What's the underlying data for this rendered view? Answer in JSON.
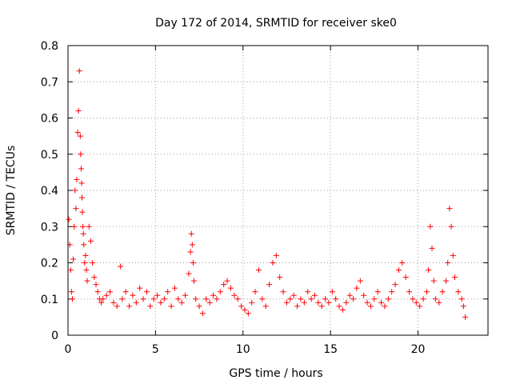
{
  "chart_data": {
    "type": "scatter",
    "title": "Day 172 of 2014, SRMTID for receiver ske0",
    "xlabel": "GPS time / hours",
    "ylabel": "SRMTID / TECUs",
    "xlim": [
      0,
      24
    ],
    "ylim": [
      0,
      0.8
    ],
    "xticks": [
      0,
      5,
      10,
      15,
      20
    ],
    "yticks": [
      0,
      0.1,
      0.2,
      0.3,
      0.4,
      0.5,
      0.6,
      0.7,
      0.8
    ],
    "xtick_labels": [
      "0",
      "5",
      "10",
      "15",
      "20"
    ],
    "ytick_labels": [
      "0",
      "0.1",
      "0.2",
      "0.3",
      "0.4",
      "0.5",
      "0.6",
      "0.7",
      "0.8"
    ],
    "grid": true,
    "marker": "+",
    "marker_color": "#ff0000",
    "series": [
      {
        "name": "SRMTID",
        "x": [
          0.05,
          0.1,
          0.15,
          0.2,
          0.25,
          0.3,
          0.35,
          0.4,
          0.45,
          0.5,
          0.55,
          0.6,
          0.65,
          0.7,
          0.72,
          0.75,
          0.78,
          0.8,
          0.82,
          0.85,
          0.88,
          0.9,
          0.95,
          1.0,
          1.05,
          1.1,
          1.2,
          1.3,
          1.4,
          1.5,
          1.6,
          1.7,
          1.8,
          1.9,
          2.0,
          2.2,
          2.4,
          2.6,
          2.8,
          3.0,
          3.1,
          3.3,
          3.5,
          3.7,
          3.9,
          4.1,
          4.3,
          4.5,
          4.7,
          4.9,
          5.1,
          5.3,
          5.5,
          5.7,
          5.9,
          6.1,
          6.3,
          6.5,
          6.7,
          6.9,
          7.0,
          7.05,
          7.1,
          7.15,
          7.2,
          7.3,
          7.5,
          7.7,
          7.9,
          8.1,
          8.3,
          8.5,
          8.7,
          8.9,
          9.1,
          9.3,
          9.5,
          9.7,
          9.9,
          10.1,
          10.3,
          10.5,
          10.7,
          10.9,
          11.1,
          11.3,
          11.5,
          11.7,
          11.9,
          12.1,
          12.3,
          12.5,
          12.7,
          12.9,
          13.1,
          13.3,
          13.5,
          13.7,
          13.9,
          14.1,
          14.3,
          14.5,
          14.7,
          14.9,
          15.1,
          15.3,
          15.5,
          15.7,
          15.9,
          16.1,
          16.3,
          16.5,
          16.7,
          16.9,
          17.1,
          17.3,
          17.5,
          17.7,
          17.9,
          18.1,
          18.3,
          18.5,
          18.7,
          18.9,
          19.1,
          19.3,
          19.5,
          19.7,
          19.9,
          20.1,
          20.3,
          20.5,
          20.6,
          20.7,
          20.8,
          20.9,
          21.0,
          21.2,
          21.4,
          21.6,
          21.7,
          21.8,
          21.9,
          22.0,
          22.1,
          22.3,
          22.5,
          22.6,
          22.7
        ],
        "y": [
          0.32,
          0.25,
          0.18,
          0.12,
          0.1,
          0.21,
          0.3,
          0.4,
          0.35,
          0.43,
          0.56,
          0.62,
          0.73,
          0.55,
          0.5,
          0.46,
          0.42,
          0.38,
          0.34,
          0.3,
          0.28,
          0.25,
          0.2,
          0.22,
          0.18,
          0.15,
          0.3,
          0.26,
          0.2,
          0.16,
          0.14,
          0.12,
          0.1,
          0.09,
          0.1,
          0.11,
          0.12,
          0.09,
          0.08,
          0.19,
          0.1,
          0.12,
          0.08,
          0.11,
          0.09,
          0.13,
          0.1,
          0.12,
          0.08,
          0.1,
          0.11,
          0.09,
          0.1,
          0.12,
          0.08,
          0.13,
          0.1,
          0.09,
          0.11,
          0.17,
          0.23,
          0.28,
          0.25,
          0.2,
          0.15,
          0.1,
          0.08,
          0.06,
          0.1,
          0.09,
          0.11,
          0.1,
          0.12,
          0.14,
          0.15,
          0.13,
          0.11,
          0.1,
          0.08,
          0.07,
          0.06,
          0.09,
          0.12,
          0.18,
          0.1,
          0.08,
          0.14,
          0.2,
          0.22,
          0.16,
          0.12,
          0.09,
          0.1,
          0.11,
          0.08,
          0.1,
          0.09,
          0.12,
          0.1,
          0.11,
          0.09,
          0.08,
          0.1,
          0.09,
          0.12,
          0.1,
          0.08,
          0.07,
          0.09,
          0.11,
          0.1,
          0.13,
          0.15,
          0.11,
          0.09,
          0.08,
          0.1,
          0.12,
          0.09,
          0.08,
          0.1,
          0.12,
          0.14,
          0.18,
          0.2,
          0.16,
          0.12,
          0.1,
          0.09,
          0.08,
          0.1,
          0.12,
          0.18,
          0.3,
          0.24,
          0.15,
          0.1,
          0.09,
          0.12,
          0.15,
          0.2,
          0.35,
          0.3,
          0.22,
          0.16,
          0.12,
          0.1,
          0.08,
          0.05
        ]
      }
    ]
  }
}
